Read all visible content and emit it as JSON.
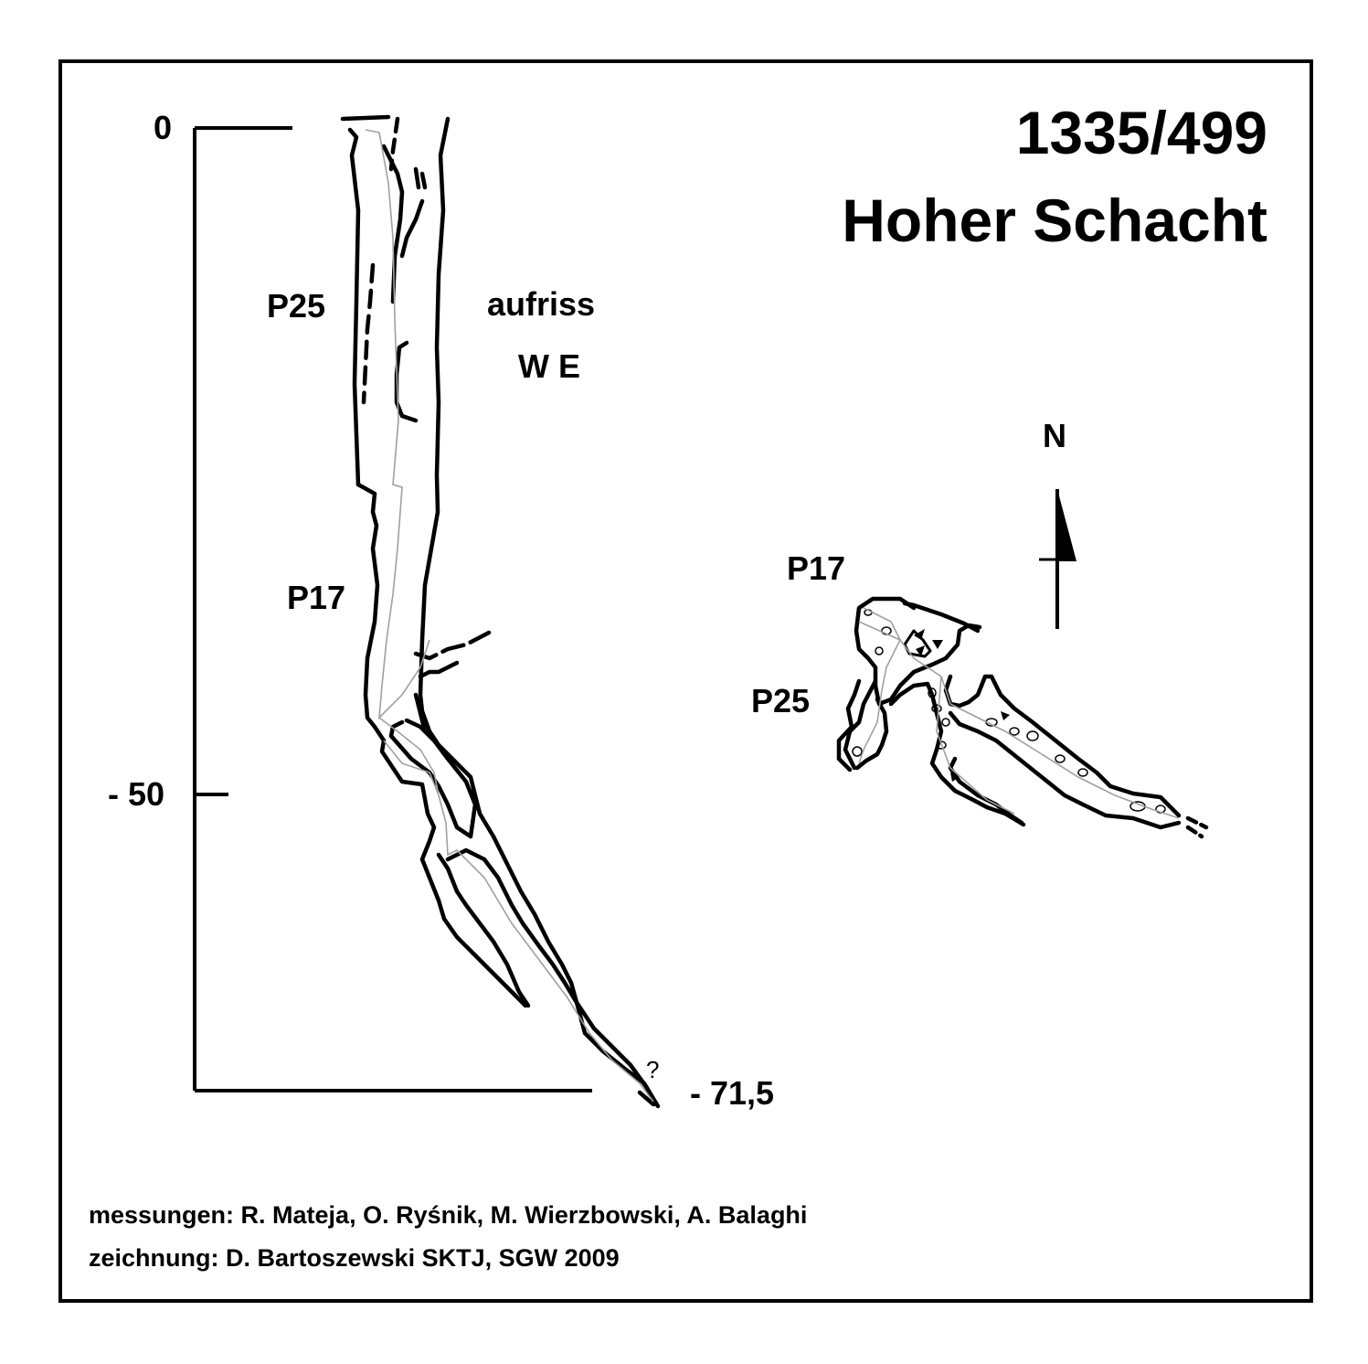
{
  "title": {
    "number": "1335/499",
    "name": "Hoher Schacht"
  },
  "elevation_view": {
    "label": "aufriss",
    "orientation": "W E",
    "depth_ticks": [
      "0",
      "- 50",
      "- 71,5"
    ],
    "pitch_labels": [
      "P25",
      "P17"
    ],
    "uncertain_mark": "?"
  },
  "plan_view": {
    "north_label": "N",
    "pitch_labels": [
      "P17",
      "P25"
    ]
  },
  "credits": {
    "survey": "messungen: R. Mateja, O. Ryśnik, M. Wierzbowski, A. Balaghi",
    "drawing": "zeichnung: D. Bartoszewski SKTJ, SGW 2009"
  },
  "colors": {
    "ink": "#000000",
    "survey_line": "#a0a0a0",
    "background": "#ffffff"
  }
}
